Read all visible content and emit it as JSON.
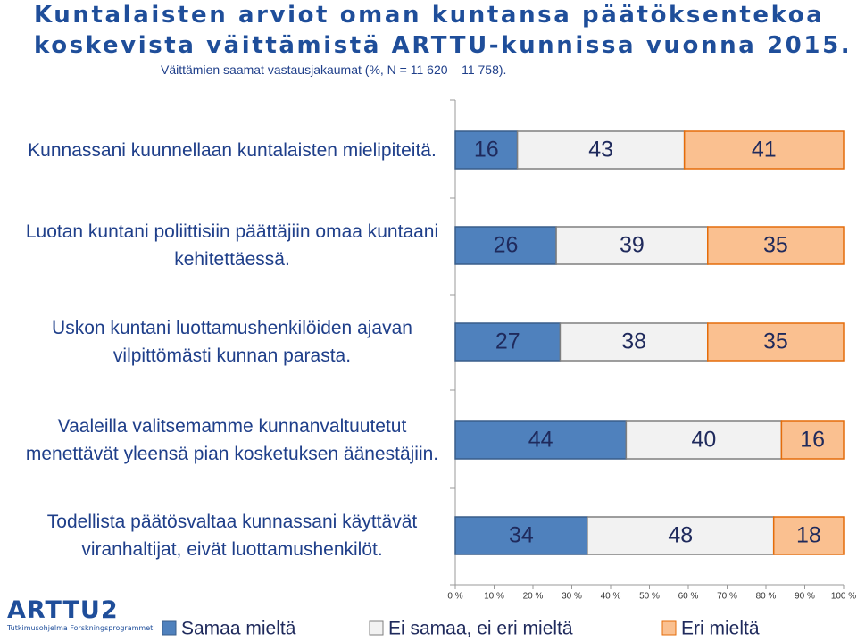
{
  "chart_data": {
    "type": "stacked-bar-horizontal",
    "title": [
      "Kuntalaisten arviot oman kuntansa päätöksentekoa",
      "koskevista väittämistä ARTTU-kunnissa vuonna 2015."
    ],
    "subtitle": "Väittämien saamat vastausjakaumat (%, N = 11 620 – 11 758).",
    "categories": [
      "Kunnassani kuunnellaan kuntalaisten mielipiteitä.",
      "Luotan kuntani poliittisiin päättäjiin omaa kuntaani kehitettäessä.",
      "Uskon kuntani luottamushenkilöiden ajavan vilpittömästi kunnan parasta.",
      "Vaaleilla valitsemamme kunnanvaltuutetut menettävät yleensä pian kosketuksen äänestäjiin.",
      "Todellista päätösvaltaa kunnassani käyttävät viranhaltijat, eivät luottamushenkilöt."
    ],
    "series": [
      {
        "name": "Samaa mieltä",
        "color": "#4f81bd",
        "values": [
          16,
          26,
          27,
          44,
          34
        ]
      },
      {
        "name": "Ei samaa, ei eri mieltä",
        "color": "#f2f2f2",
        "values": [
          43,
          39,
          38,
          40,
          48
        ]
      },
      {
        "name": "Eri mieltä",
        "color": "#fac090",
        "values": [
          41,
          35,
          35,
          16,
          18
        ]
      }
    ],
    "xlim": [
      0,
      100
    ],
    "xticks": [
      {
        "value": 0,
        "label": "0 %"
      },
      {
        "value": 10,
        "label": "10 %"
      },
      {
        "value": 20,
        "label": "20 %"
      },
      {
        "value": 30,
        "label": "30 %"
      },
      {
        "value": 40,
        "label": "40 %"
      },
      {
        "value": 50,
        "label": "50 %"
      },
      {
        "value": 60,
        "label": "60 %"
      },
      {
        "value": 70,
        "label": "70 %"
      },
      {
        "value": 80,
        "label": "80 %"
      },
      {
        "value": 90,
        "label": "90 %"
      },
      {
        "value": 100,
        "label": "100 %"
      }
    ],
    "legend": "bottom"
  },
  "logo": {
    "name": "ARTTU2",
    "tagline": "Tutkimusohjelma Forskningsprogrammet"
  }
}
